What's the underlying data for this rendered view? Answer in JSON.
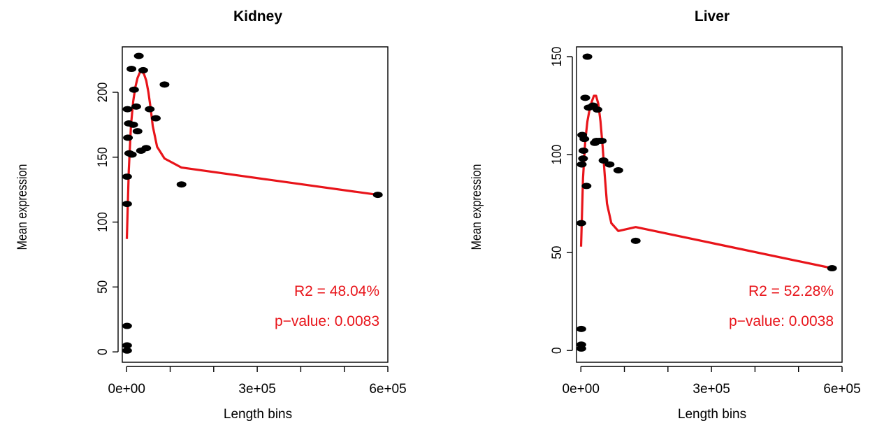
{
  "colors": {
    "fit_line": "#e8141a",
    "points": "#000000",
    "annotation": "#e8141a"
  },
  "chart_data": [
    {
      "type": "scatter",
      "title": "Kidney",
      "xlabel": "Length bins",
      "ylabel": "Mean expression",
      "xlim": [
        -10000,
        600000
      ],
      "ylim": [
        -8,
        235
      ],
      "x_ticks": [
        0,
        300000,
        600000
      ],
      "x_tick_labels": [
        "0e+00",
        "3e+05",
        "6e+05"
      ],
      "x_minor_ticks": [
        0,
        100000,
        200000,
        300000,
        400000,
        500000,
        600000
      ],
      "y_ticks": [
        0,
        50,
        100,
        150,
        200
      ],
      "y_tick_labels": [
        "0",
        "50",
        "100",
        "150",
        "200"
      ],
      "annotations": [
        "R2 = 48.04%",
        "p−value: 0.0083"
      ],
      "points": [
        {
          "x": 28000,
          "y": 228
        },
        {
          "x": 11000,
          "y": 218
        },
        {
          "x": 38000,
          "y": 217
        },
        {
          "x": 87000,
          "y": 206
        },
        {
          "x": 17000,
          "y": 202
        },
        {
          "x": 22000,
          "y": 189
        },
        {
          "x": 2000,
          "y": 187
        },
        {
          "x": 53000,
          "y": 187
        },
        {
          "x": 67000,
          "y": 180
        },
        {
          "x": 5000,
          "y": 176
        },
        {
          "x": 15000,
          "y": 175
        },
        {
          "x": 25000,
          "y": 170
        },
        {
          "x": 3000,
          "y": 165
        },
        {
          "x": 45000,
          "y": 157
        },
        {
          "x": 33000,
          "y": 155
        },
        {
          "x": 6000,
          "y": 153
        },
        {
          "x": 12000,
          "y": 152
        },
        {
          "x": 1000,
          "y": 135
        },
        {
          "x": 126000,
          "y": 129
        },
        {
          "x": 577000,
          "y": 121
        },
        {
          "x": 1000,
          "y": 114
        },
        {
          "x": 1000,
          "y": 20
        },
        {
          "x": 1000,
          "y": 5
        },
        {
          "x": 1000,
          "y": 1
        }
      ],
      "fit_line": [
        {
          "x": 500,
          "y": 87
        },
        {
          "x": 5000,
          "y": 140
        },
        {
          "x": 10000,
          "y": 175
        },
        {
          "x": 15000,
          "y": 193
        },
        {
          "x": 20000,
          "y": 204
        },
        {
          "x": 25000,
          "y": 211
        },
        {
          "x": 30000,
          "y": 215
        },
        {
          "x": 35000,
          "y": 216
        },
        {
          "x": 40000,
          "y": 214
        },
        {
          "x": 45000,
          "y": 209
        },
        {
          "x": 50000,
          "y": 200
        },
        {
          "x": 55000,
          "y": 188
        },
        {
          "x": 60000,
          "y": 174
        },
        {
          "x": 70000,
          "y": 158
        },
        {
          "x": 87000,
          "y": 149
        },
        {
          "x": 126000,
          "y": 142
        },
        {
          "x": 577000,
          "y": 121
        }
      ]
    },
    {
      "type": "scatter",
      "title": "Liver",
      "xlabel": "Length bins",
      "ylabel": "Mean expression",
      "xlim": [
        -10000,
        600000
      ],
      "ylim": [
        -6,
        155
      ],
      "x_ticks": [
        0,
        300000,
        600000
      ],
      "x_tick_labels": [
        "0e+00",
        "3e+05",
        "6e+05"
      ],
      "x_minor_ticks": [
        0,
        100000,
        200000,
        300000,
        400000,
        500000,
        600000
      ],
      "y_ticks": [
        0,
        50,
        100,
        150
      ],
      "y_tick_labels": [
        "0",
        "50",
        "100",
        "150"
      ],
      "annotations": [
        "R2 = 52.28%",
        "p−value: 0.0038"
      ],
      "points": [
        {
          "x": 15000,
          "y": 150
        },
        {
          "x": 10000,
          "y": 129
        },
        {
          "x": 28000,
          "y": 125
        },
        {
          "x": 18000,
          "y": 124
        },
        {
          "x": 38000,
          "y": 123
        },
        {
          "x": 3000,
          "y": 110
        },
        {
          "x": 8000,
          "y": 108
        },
        {
          "x": 36000,
          "y": 107
        },
        {
          "x": 42000,
          "y": 107
        },
        {
          "x": 48000,
          "y": 107
        },
        {
          "x": 32000,
          "y": 106
        },
        {
          "x": 6000,
          "y": 102
        },
        {
          "x": 5000,
          "y": 98
        },
        {
          "x": 52000,
          "y": 97
        },
        {
          "x": 66000,
          "y": 95
        },
        {
          "x": 2000,
          "y": 95
        },
        {
          "x": 86000,
          "y": 92
        },
        {
          "x": 13000,
          "y": 84
        },
        {
          "x": 1000,
          "y": 65
        },
        {
          "x": 126000,
          "y": 56
        },
        {
          "x": 577000,
          "y": 42
        },
        {
          "x": 1000,
          "y": 11
        },
        {
          "x": 1000,
          "y": 3
        },
        {
          "x": 1000,
          "y": 1
        }
      ],
      "fit_line": [
        {
          "x": 500,
          "y": 53
        },
        {
          "x": 5000,
          "y": 88
        },
        {
          "x": 10000,
          "y": 107
        },
        {
          "x": 15000,
          "y": 117
        },
        {
          "x": 20000,
          "y": 123
        },
        {
          "x": 25000,
          "y": 127
        },
        {
          "x": 30000,
          "y": 130
        },
        {
          "x": 35000,
          "y": 130
        },
        {
          "x": 40000,
          "y": 126
        },
        {
          "x": 45000,
          "y": 117
        },
        {
          "x": 50000,
          "y": 104
        },
        {
          "x": 55000,
          "y": 89
        },
        {
          "x": 60000,
          "y": 75
        },
        {
          "x": 70000,
          "y": 65
        },
        {
          "x": 86000,
          "y": 61
        },
        {
          "x": 126000,
          "y": 63
        },
        {
          "x": 577000,
          "y": 42
        }
      ]
    }
  ]
}
